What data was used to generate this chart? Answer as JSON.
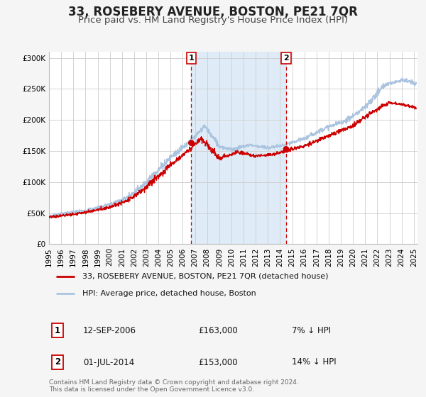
{
  "title": "33, ROSEBERY AVENUE, BOSTON, PE21 7QR",
  "subtitle": "Price paid vs. HM Land Registry's House Price Index (HPI)",
  "ylim": [
    0,
    310000
  ],
  "yticks": [
    0,
    50000,
    100000,
    150000,
    200000,
    250000,
    300000
  ],
  "ytick_labels": [
    "£0",
    "£50K",
    "£100K",
    "£150K",
    "£200K",
    "£250K",
    "£300K"
  ],
  "background_color": "#f5f5f5",
  "plot_bg_color": "#ffffff",
  "grid_color": "#cccccc",
  "hpi_color": "#aac4e0",
  "price_color": "#cc0000",
  "sale1_x": 2006.7,
  "sale2_x": 2014.5,
  "sale1_price": 163000,
  "sale2_price": 153000,
  "shade_color": "#d8e8f5",
  "legend_label_price": "33, ROSEBERY AVENUE, BOSTON, PE21 7QR (detached house)",
  "legend_label_hpi": "HPI: Average price, detached house, Boston",
  "sale1_date": "12-SEP-2006",
  "sale1_amount": "£163,000",
  "sale1_note": "7% ↓ HPI",
  "sale2_date": "01-JUL-2014",
  "sale2_amount": "£153,000",
  "sale2_note": "14% ↓ HPI",
  "footer": "Contains HM Land Registry data © Crown copyright and database right 2024.\nThis data is licensed under the Open Government Licence v3.0.",
  "title_fontsize": 12,
  "subtitle_fontsize": 9.5,
  "tick_fontsize": 7.5,
  "legend_fontsize": 8,
  "info_fontsize": 8.5,
  "footer_fontsize": 6.5
}
